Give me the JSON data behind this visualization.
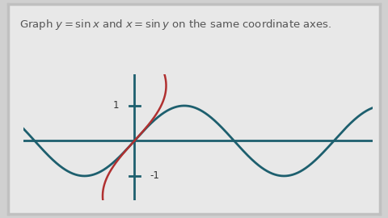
{
  "title": "Graph $y = \\sin x$ and $x = \\sin y$ on the same coordinate axes.",
  "title_fontsize": 9.5,
  "bg_outer": "#d0d0d0",
  "bg_board": "#e8e8e8",
  "board_edge": "#c0c0c0",
  "curve_color": "#1d5f6e",
  "curve2_color": "#b03030",
  "axis_color": "#1d5f6e",
  "axis_linewidth": 2.0,
  "curve_linewidth": 2.0,
  "curve2_linewidth": 1.8,
  "xlim": [
    -3.5,
    7.5
  ],
  "ylim": [
    -1.7,
    1.9
  ],
  "tick_label_color": "#333333",
  "tick_fontsize": 8.5
}
